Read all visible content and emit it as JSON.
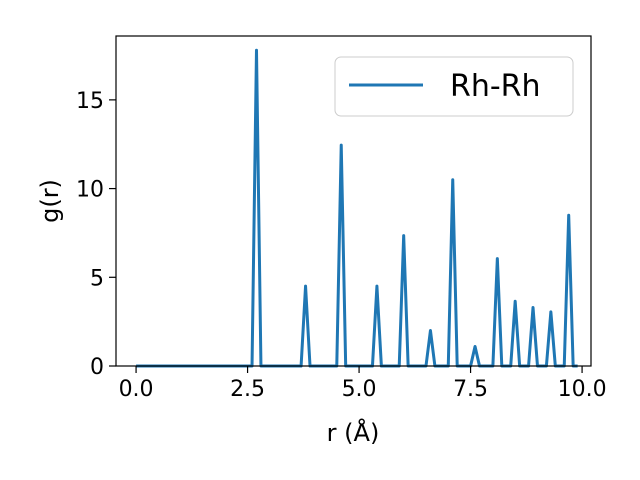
{
  "chart_data": {
    "type": "line",
    "title": "",
    "xlabel": "r (Å)",
    "ylabel": "g(r)",
    "xlim": [
      -0.45,
      10.2
    ],
    "ylim": [
      0,
      18.6
    ],
    "xticks": [
      0.0,
      2.5,
      5.0,
      7.5,
      10.0
    ],
    "xtick_labels": [
      "0.0",
      "2.5",
      "5.0",
      "7.5",
      "10.0"
    ],
    "yticks": [
      0,
      5,
      10,
      15
    ],
    "ytick_labels": [
      "0",
      "5",
      "10",
      "15"
    ],
    "grid": false,
    "legend_position": "top-right",
    "color": "#1f77b4",
    "series": [
      {
        "name": "Rh-Rh",
        "x": [
          0.0,
          2.6,
          2.7,
          2.8,
          3.7,
          3.8,
          3.9,
          4.5,
          4.6,
          4.7,
          5.3,
          5.4,
          5.5,
          5.9,
          6.0,
          6.1,
          6.5,
          6.6,
          6.7,
          7.0,
          7.1,
          7.2,
          7.5,
          7.6,
          7.7,
          8.0,
          8.1,
          8.2,
          8.4,
          8.5,
          8.6,
          8.8,
          8.9,
          9.0,
          9.2,
          9.3,
          9.4,
          9.6,
          9.7,
          9.8,
          9.9
        ],
        "y": [
          0,
          0,
          17.8,
          0,
          0,
          4.5,
          0,
          0,
          12.45,
          0,
          0,
          4.5,
          0,
          0,
          7.35,
          0,
          0,
          2.0,
          0,
          0,
          10.5,
          0,
          0,
          1.1,
          0,
          0,
          6.05,
          0,
          0,
          3.65,
          0,
          0,
          3.3,
          0,
          0,
          3.05,
          0,
          0,
          8.5,
          0,
          0
        ]
      }
    ]
  }
}
